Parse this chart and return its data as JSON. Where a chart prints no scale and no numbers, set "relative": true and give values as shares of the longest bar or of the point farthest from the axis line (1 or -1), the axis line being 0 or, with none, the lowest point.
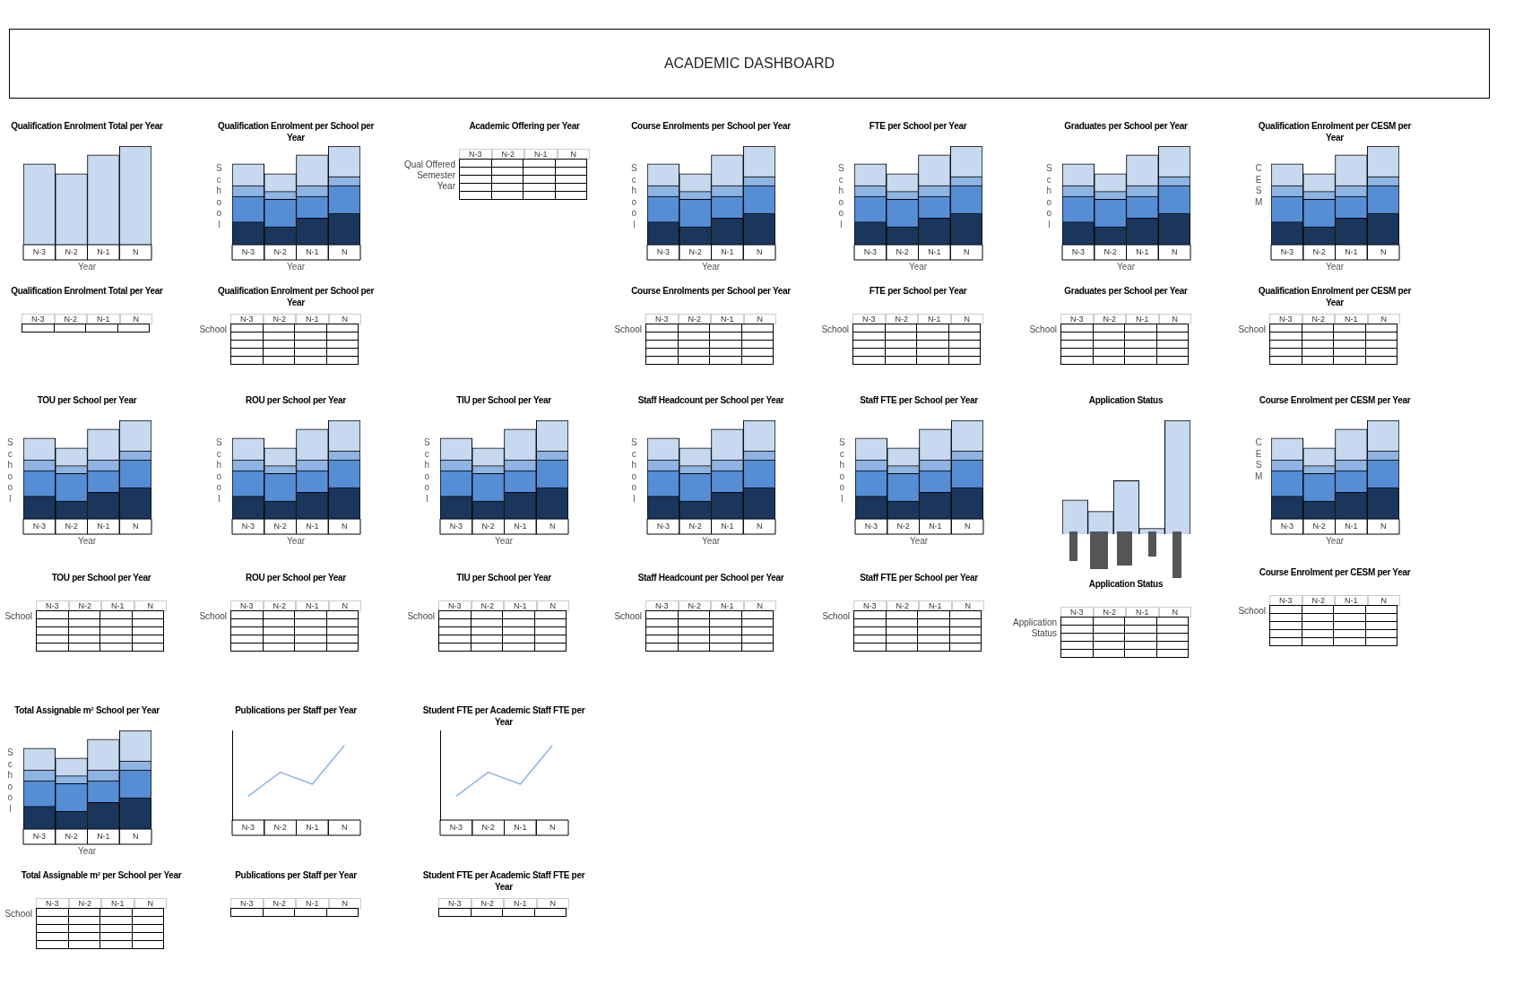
{
  "chart_data": [
    {
      "type": "other",
      "title": "ACADEMIC DASHBOARD"
    },
    {
      "type": "bar",
      "title": "Qualification Enrolment Total per Year",
      "relative": true,
      "categories": [
        "N-3",
        "N-2",
        "N-1",
        "N"
      ],
      "values": [
        0.82,
        0.72,
        0.91,
        1.0
      ],
      "color": "#c6d9f1",
      "xlabel": "Year"
    },
    {
      "type": "bar",
      "title": "Qualification Enrolment per School per Year",
      "relative": true,
      "stacked": true,
      "categories": [
        "N-3",
        "N-2",
        "N-1",
        "N"
      ],
      "xlabel": "Year",
      "ylabel": "School",
      "series": [
        {
          "color": "#1b365d",
          "values": [
            0.23,
            0.18,
            0.27,
            0.32
          ]
        },
        {
          "color": "#558ed5",
          "values": [
            0.26,
            0.28,
            0.22,
            0.28
          ]
        },
        {
          "color": "#8eb4e3",
          "values": [
            0.11,
            0.08,
            0.11,
            0.09
          ]
        },
        {
          "color": "#c6d9f1",
          "values": [
            0.22,
            0.18,
            0.31,
            0.31
          ]
        }
      ]
    },
    {
      "type": "other",
      "title": "Academic Offering per Year",
      "categories": [
        "N-3",
        "N-2",
        "N-1",
        "N"
      ],
      "ylabel": "Qual Offered Semester Year"
    },
    {
      "type": "bar",
      "title": "Course Enrolments per School per Year",
      "relative": true,
      "stacked": true,
      "categories": [
        "N-3",
        "N-2",
        "N-1",
        "N"
      ],
      "xlabel": "Year",
      "ylabel": "School",
      "series": [
        {
          "color": "#1b365d",
          "values": [
            0.23,
            0.18,
            0.27,
            0.32
          ]
        },
        {
          "color": "#558ed5",
          "values": [
            0.26,
            0.28,
            0.22,
            0.28
          ]
        },
        {
          "color": "#8eb4e3",
          "values": [
            0.11,
            0.08,
            0.11,
            0.09
          ]
        },
        {
          "color": "#c6d9f1",
          "values": [
            0.22,
            0.18,
            0.31,
            0.31
          ]
        }
      ]
    },
    {
      "type": "bar",
      "title": "FTE per School per Year",
      "relative": true,
      "stacked": true,
      "categories": [
        "N-3",
        "N-2",
        "N-1",
        "N"
      ],
      "xlabel": "Year",
      "ylabel": "School",
      "series": [
        {
          "color": "#1b365d",
          "values": [
            0.23,
            0.18,
            0.27,
            0.32
          ]
        },
        {
          "color": "#558ed5",
          "values": [
            0.26,
            0.28,
            0.22,
            0.28
          ]
        },
        {
          "color": "#8eb4e3",
          "values": [
            0.11,
            0.08,
            0.11,
            0.09
          ]
        },
        {
          "color": "#c6d9f1",
          "values": [
            0.22,
            0.18,
            0.31,
            0.31
          ]
        }
      ]
    },
    {
      "type": "bar",
      "title": "Graduates per School per Year",
      "relative": true,
      "stacked": true,
      "categories": [
        "N-3",
        "N-2",
        "N-1",
        "N"
      ],
      "xlabel": "Year",
      "ylabel": "School",
      "series": [
        {
          "color": "#1b365d",
          "values": [
            0.23,
            0.18,
            0.27,
            0.32
          ]
        },
        {
          "color": "#558ed5",
          "values": [
            0.26,
            0.28,
            0.22,
            0.28
          ]
        },
        {
          "color": "#8eb4e3",
          "values": [
            0.11,
            0.08,
            0.11,
            0.09
          ]
        },
        {
          "color": "#c6d9f1",
          "values": [
            0.22,
            0.18,
            0.31,
            0.31
          ]
        }
      ]
    },
    {
      "type": "bar",
      "title": "Qualification Enrolment per CESM per Year",
      "relative": true,
      "stacked": true,
      "categories": [
        "N-3",
        "N-2",
        "N-1",
        "N"
      ],
      "xlabel": "Year",
      "ylabel": "CESM",
      "series": [
        {
          "color": "#1b365d",
          "values": [
            0.23,
            0.18,
            0.27,
            0.32
          ]
        },
        {
          "color": "#558ed5",
          "values": [
            0.26,
            0.28,
            0.22,
            0.28
          ]
        },
        {
          "color": "#8eb4e3",
          "values": [
            0.11,
            0.08,
            0.11,
            0.09
          ]
        },
        {
          "color": "#c6d9f1",
          "values": [
            0.22,
            0.18,
            0.31,
            0.31
          ]
        }
      ]
    },
    {
      "type": "other",
      "title": "Qualification Enrolment Total per Year",
      "categories": [
        "N-3",
        "N-2",
        "N-1",
        "N"
      ]
    },
    {
      "type": "other",
      "title": "Qualification Enrolment per School per Year",
      "categories": [
        "N-3",
        "N-2",
        "N-1",
        "N"
      ],
      "ylabel": "School"
    },
    {
      "type": "other",
      "title": "Course Enrolments per School per Year",
      "categories": [
        "N-3",
        "N-2",
        "N-1",
        "N"
      ],
      "ylabel": "School"
    },
    {
      "type": "other",
      "title": "FTE per School per Year",
      "categories": [
        "N-3",
        "N-2",
        "N-1",
        "N"
      ],
      "ylabel": "School"
    },
    {
      "type": "other",
      "title": "Graduates per School per Year",
      "categories": [
        "N-3",
        "N-2",
        "N-1",
        "N"
      ],
      "ylabel": "School"
    },
    {
      "type": "other",
      "title": "Qualification Enrolment per CESM per Year",
      "categories": [
        "N-3",
        "N-2",
        "N-1",
        "N"
      ],
      "ylabel": "School"
    },
    {
      "type": "bar",
      "title": "TOU per School per Year",
      "relative": true,
      "stacked": true,
      "categories": [
        "N-3",
        "N-2",
        "N-1",
        "N"
      ],
      "xlabel": "Year",
      "ylabel": "School",
      "series": [
        {
          "color": "#1b365d",
          "values": [
            0.23,
            0.18,
            0.27,
            0.32
          ]
        },
        {
          "color": "#558ed5",
          "values": [
            0.26,
            0.28,
            0.22,
            0.28
          ]
        },
        {
          "color": "#8eb4e3",
          "values": [
            0.11,
            0.08,
            0.11,
            0.09
          ]
        },
        {
          "color": "#c6d9f1",
          "values": [
            0.22,
            0.18,
            0.31,
            0.31
          ]
        }
      ]
    },
    {
      "type": "bar",
      "title": "ROU per School per Year",
      "relative": true,
      "stacked": true,
      "categories": [
        "N-3",
        "N-2",
        "N-1",
        "N"
      ],
      "xlabel": "Year",
      "ylabel": "School",
      "series": [
        {
          "color": "#1b365d",
          "values": [
            0.23,
            0.18,
            0.27,
            0.32
          ]
        },
        {
          "color": "#558ed5",
          "values": [
            0.26,
            0.28,
            0.22,
            0.28
          ]
        },
        {
          "color": "#8eb4e3",
          "values": [
            0.11,
            0.08,
            0.11,
            0.09
          ]
        },
        {
          "color": "#c6d9f1",
          "values": [
            0.22,
            0.18,
            0.31,
            0.31
          ]
        }
      ]
    },
    {
      "type": "bar",
      "title": "TIU per School per Year",
      "relative": true,
      "stacked": true,
      "categories": [
        "N-3",
        "N-2",
        "N-1",
        "N"
      ],
      "xlabel": "Year",
      "ylabel": "School",
      "series": [
        {
          "color": "#1b365d",
          "values": [
            0.23,
            0.18,
            0.27,
            0.32
          ]
        },
        {
          "color": "#558ed5",
          "values": [
            0.26,
            0.28,
            0.22,
            0.28
          ]
        },
        {
          "color": "#8eb4e3",
          "values": [
            0.11,
            0.08,
            0.11,
            0.09
          ]
        },
        {
          "color": "#c6d9f1",
          "values": [
            0.22,
            0.18,
            0.31,
            0.31
          ]
        }
      ]
    },
    {
      "type": "bar",
      "title": "Staff Headcount per School per Year",
      "relative": true,
      "stacked": true,
      "categories": [
        "N-3",
        "N-2",
        "N-1",
        "N"
      ],
      "xlabel": "Year",
      "ylabel": "School",
      "series": [
        {
          "color": "#1b365d",
          "values": [
            0.23,
            0.18,
            0.27,
            0.32
          ]
        },
        {
          "color": "#558ed5",
          "values": [
            0.26,
            0.28,
            0.22,
            0.28
          ]
        },
        {
          "color": "#8eb4e3",
          "values": [
            0.11,
            0.08,
            0.11,
            0.09
          ]
        },
        {
          "color": "#c6d9f1",
          "values": [
            0.22,
            0.18,
            0.31,
            0.31
          ]
        }
      ]
    },
    {
      "type": "bar",
      "title": "Staff FTE per School per Year",
      "relative": true,
      "stacked": true,
      "categories": [
        "N-3",
        "N-2",
        "N-1",
        "N"
      ],
      "xlabel": "Year",
      "ylabel": "School",
      "series": [
        {
          "color": "#1b365d",
          "values": [
            0.23,
            0.18,
            0.27,
            0.32
          ]
        },
        {
          "color": "#558ed5",
          "values": [
            0.26,
            0.28,
            0.22,
            0.28
          ]
        },
        {
          "color": "#8eb4e3",
          "values": [
            0.11,
            0.08,
            0.11,
            0.09
          ]
        },
        {
          "color": "#c6d9f1",
          "values": [
            0.22,
            0.18,
            0.31,
            0.31
          ]
        }
      ]
    },
    {
      "type": "bar",
      "title": "Application Status",
      "relative": true,
      "categories": [
        null,
        null,
        null,
        null,
        null
      ],
      "values": [
        0.3,
        0.2,
        0.47,
        0.05,
        1.0
      ],
      "color": "#c6d9f1"
    },
    {
      "type": "bar",
      "title": "Course Enrolment per CESM per Year",
      "relative": true,
      "stacked": true,
      "categories": [
        "N-3",
        "N-2",
        "N-1",
        "N"
      ],
      "xlabel": "Year",
      "ylabel": "CESM",
      "series": [
        {
          "color": "#1b365d",
          "values": [
            0.23,
            0.18,
            0.27,
            0.32
          ]
        },
        {
          "color": "#558ed5",
          "values": [
            0.26,
            0.28,
            0.22,
            0.28
          ]
        },
        {
          "color": "#8eb4e3",
          "values": [
            0.11,
            0.08,
            0.11,
            0.09
          ]
        },
        {
          "color": "#c6d9f1",
          "values": [
            0.22,
            0.18,
            0.31,
            0.31
          ]
        }
      ]
    },
    {
      "type": "other",
      "title": "TOU per School per Year",
      "categories": [
        "N-3",
        "N-2",
        "N-1",
        "N"
      ],
      "ylabel": "School"
    },
    {
      "type": "other",
      "title": "ROU per School per Year",
      "categories": [
        "N-3",
        "N-2",
        "N-1",
        "N"
      ],
      "ylabel": "School"
    },
    {
      "type": "other",
      "title": "TIU per School per Year",
      "categories": [
        "N-3",
        "N-2",
        "N-1",
        "N"
      ],
      "ylabel": "School"
    },
    {
      "type": "other",
      "title": "Staff Headcount per School per Year",
      "categories": [
        "N-3",
        "N-2",
        "N-1",
        "N"
      ],
      "ylabel": "School"
    },
    {
      "type": "other",
      "title": "Staff FTE per School per Year",
      "categories": [
        "N-3",
        "N-2",
        "N-1",
        "N"
      ],
      "ylabel": "School"
    },
    {
      "type": "other",
      "title": "Application Status",
      "categories": [
        "N-3",
        "N-2",
        "N-1",
        "N"
      ],
      "ylabel": "Application Status"
    },
    {
      "type": "other",
      "title": "Course Enrolment per CESM per Year",
      "categories": [
        "N-3",
        "N-2",
        "N-1",
        "N"
      ],
      "ylabel": "School"
    },
    {
      "type": "bar",
      "title": "Total Assignable m² School per Year",
      "relative": true,
      "stacked": true,
      "categories": [
        "N-3",
        "N-2",
        "N-1",
        "N"
      ],
      "xlabel": "Year",
      "ylabel": "School",
      "series": [
        {
          "color": "#1b365d",
          "values": [
            0.23,
            0.18,
            0.27,
            0.32
          ]
        },
        {
          "color": "#558ed5",
          "values": [
            0.26,
            0.28,
            0.22,
            0.28
          ]
        },
        {
          "color": "#8eb4e3",
          "values": [
            0.11,
            0.08,
            0.11,
            0.09
          ]
        },
        {
          "color": "#c6d9f1",
          "values": [
            0.22,
            0.18,
            0.31,
            0.31
          ]
        }
      ]
    },
    {
      "type": "line",
      "title": "Publications per Staff per Year",
      "relative": true,
      "categories": [
        "N-3",
        "N-2",
        "N-1",
        "N"
      ],
      "values": [
        0.32,
        0.64,
        0.48,
        1.0
      ],
      "color": "#8db3e2"
    },
    {
      "type": "line",
      "title": "Student FTE per Academic Staff FTE per Year",
      "relative": true,
      "categories": [
        "N-3",
        "N-2",
        "N-1",
        "N"
      ],
      "values": [
        0.32,
        0.64,
        0.48,
        1.0
      ],
      "color": "#8db3e2"
    },
    {
      "type": "other",
      "title": "Total Assignable m² per School per Year",
      "categories": [
        "N-3",
        "N-2",
        "N-1",
        "N"
      ],
      "ylabel": "School"
    },
    {
      "type": "other",
      "title": "Publications per Staff per Year",
      "categories": [
        "N-3",
        "N-2",
        "N-1",
        "N"
      ]
    },
    {
      "type": "other",
      "title": "Student FTE per Academic Staff FTE per Year",
      "categories": [
        "N-3",
        "N-2",
        "N-1",
        "N"
      ]
    }
  ]
}
